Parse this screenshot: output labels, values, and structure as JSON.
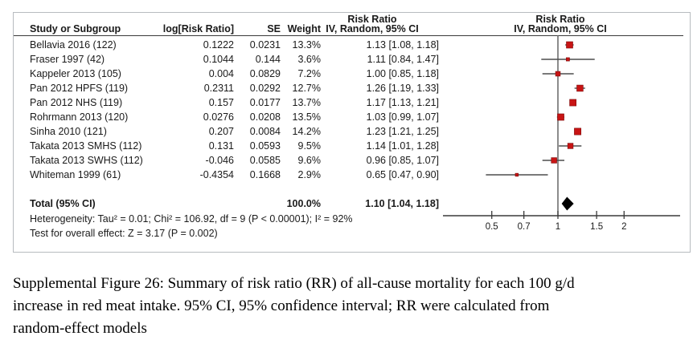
{
  "figure": {
    "columns": {
      "study": "Study or Subgroup",
      "log_rr": "log[Risk Ratio]",
      "se": "SE",
      "weight": "Weight",
      "ci_group": "Risk Ratio",
      "ci": "IV, Random, 95% CI",
      "plot_group": "Risk Ratio",
      "plot_ci": "IV, Random, 95% CI"
    },
    "total": {
      "label": "Total (95% CI)",
      "weight": "100.0%",
      "ci_text": "1.10 [1.04, 1.18]",
      "rr": 1.1,
      "ci_low": 1.04,
      "ci_high": 1.18
    },
    "heterogeneity": "Heterogeneity: Tau² = 0.01; Chi² = 106.92, df = 9 (P < 0.00001); I² = 92%",
    "overall_effect": "Test for overall effect: Z = 3.17 (P = 0.002)"
  },
  "chart_data": {
    "type": "forest",
    "effect_label": "Risk Ratio",
    "model": "IV, Random, 95% CI",
    "x_scale": "log",
    "axis_ticks": [
      "0.5",
      "0.7",
      "1",
      "1.5",
      "2"
    ],
    "axis_range": [
      0.4,
      2.6
    ],
    "studies": [
      {
        "study": "Bellavia 2016 (122)",
        "log_rr": "0.1222",
        "se": "0.0231",
        "weight": "13.3%",
        "weight_pct": 13.3,
        "ci_text": "1.13 [1.08, 1.18]",
        "rr": 1.13,
        "ci_low": 1.08,
        "ci_high": 1.18
      },
      {
        "study": "Fraser 1997 (42)",
        "log_rr": "0.1044",
        "se": "0.144",
        "weight": "3.6%",
        "weight_pct": 3.6,
        "ci_text": "1.11 [0.84, 1.47]",
        "rr": 1.11,
        "ci_low": 0.84,
        "ci_high": 1.47
      },
      {
        "study": "Kappeler 2013 (105)",
        "log_rr": "0.004",
        "se": "0.0829",
        "weight": "7.2%",
        "weight_pct": 7.2,
        "ci_text": "1.00 [0.85, 1.18]",
        "rr": 1.0,
        "ci_low": 0.85,
        "ci_high": 1.18
      },
      {
        "study": "Pan 2012 HPFS (119)",
        "log_rr": "0.2311",
        "se": "0.0292",
        "weight": "12.7%",
        "weight_pct": 12.7,
        "ci_text": "1.26 [1.19, 1.33]",
        "rr": 1.26,
        "ci_low": 1.19,
        "ci_high": 1.33
      },
      {
        "study": "Pan 2012 NHS (119)",
        "log_rr": "0.157",
        "se": "0.0177",
        "weight": "13.7%",
        "weight_pct": 13.7,
        "ci_text": "1.17 [1.13, 1.21]",
        "rr": 1.17,
        "ci_low": 1.13,
        "ci_high": 1.21
      },
      {
        "study": "Rohrmann 2013 (120)",
        "log_rr": "0.0276",
        "se": "0.0208",
        "weight": "13.5%",
        "weight_pct": 13.5,
        "ci_text": "1.03 [0.99, 1.07]",
        "rr": 1.03,
        "ci_low": 0.99,
        "ci_high": 1.07
      },
      {
        "study": "Sinha 2010 (121)",
        "log_rr": "0.207",
        "se": "0.0084",
        "weight": "14.2%",
        "weight_pct": 14.2,
        "ci_text": "1.23 [1.21, 1.25]",
        "rr": 1.23,
        "ci_low": 1.21,
        "ci_high": 1.25
      },
      {
        "study": "Takata 2013 SMHS (112)",
        "log_rr": "0.131",
        "se": "0.0593",
        "weight": "9.5%",
        "weight_pct": 9.5,
        "ci_text": "1.14 [1.01, 1.28]",
        "rr": 1.14,
        "ci_low": 1.01,
        "ci_high": 1.28
      },
      {
        "study": "Takata 2013 SWHS (112)",
        "log_rr": "-0.046",
        "se": "0.0585",
        "weight": "9.6%",
        "weight_pct": 9.6,
        "ci_text": "0.96 [0.85, 1.07]",
        "rr": 0.96,
        "ci_low": 0.85,
        "ci_high": 1.07
      },
      {
        "study": "Whiteman 1999 (61)",
        "log_rr": "-0.4354",
        "se": "0.1668",
        "weight": "2.9%",
        "weight_pct": 2.9,
        "ci_text": "0.65 [0.47, 0.90]",
        "rr": 0.65,
        "ci_low": 0.47,
        "ci_high": 0.9
      }
    ],
    "colors": {
      "marker": "#c81414",
      "marker_edge": "#7c0b0b",
      "ci_line": "#4d4d4d",
      "axis": "#3a3a3a",
      "null_line": "#5a5a5a",
      "diamond": "#000000",
      "border": "#b7bbbf",
      "text": "#1a1a1a"
    }
  },
  "caption": {
    "lines": [
      "Supplemental Figure 26: Summary of risk ratio (RR) of all-cause mortality for each 100 g/d",
      "increase in red meat intake. 95% CI, 95% confidence interval; RR were calculated from",
      "random-effect models"
    ]
  }
}
